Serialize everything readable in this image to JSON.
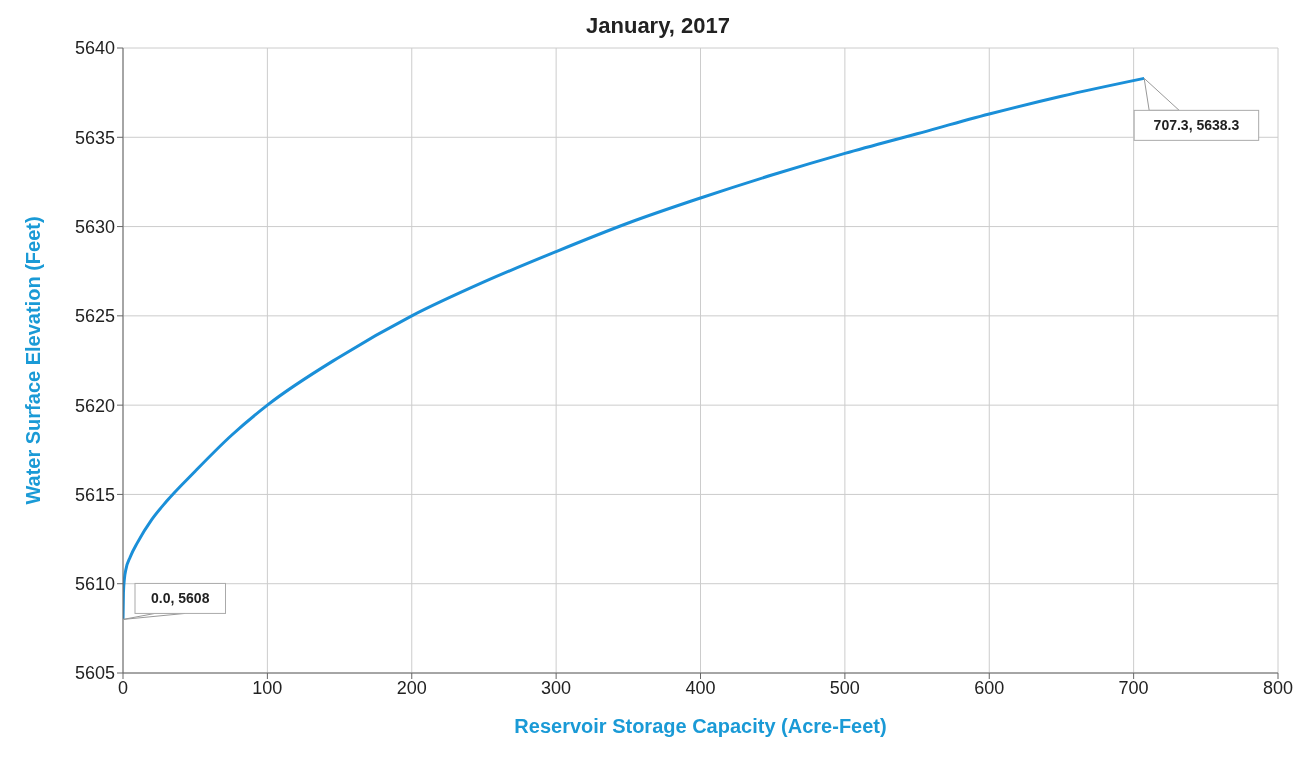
{
  "chart_data": {
    "type": "line",
    "title": "January, 2017",
    "xlabel": "Reservoir Storage Capacity (Acre-Feet)",
    "ylabel": "Water Surface Elevation (Feet)",
    "x": [
      0,
      0.3,
      1,
      2,
      5,
      10,
      20,
      30,
      50,
      75,
      100,
      150,
      200,
      250,
      300,
      350,
      400,
      450,
      500,
      550,
      600,
      650,
      707.3
    ],
    "series": [
      {
        "color": "#1a8fd8",
        "values": [
          5608,
          5609.5,
          5610.3,
          5610.8,
          5611.5,
          5612.3,
          5613.6,
          5614.6,
          5616.3,
          5618.3,
          5620,
          5622.7,
          5625,
          5626.9,
          5628.6,
          5630.2,
          5631.6,
          5632.9,
          5634.1,
          5635.2,
          5636.3,
          5637.3,
          5638.3
        ]
      }
    ],
    "xlim": [
      0,
      800
    ],
    "xticks": [
      0,
      100,
      200,
      300,
      400,
      500,
      600,
      700,
      800
    ],
    "ylim": [
      5605,
      5640
    ],
    "yticks": [
      5605,
      5610,
      5615,
      5620,
      5625,
      5630,
      5635,
      5640
    ],
    "grid": true,
    "legend": false,
    "marker": "none",
    "line_style": "solid",
    "annotations": [
      {
        "text": "0.0, 5608",
        "x": 0,
        "y": 5608
      },
      {
        "text": "707.3, 5638.3",
        "x": 707.3,
        "y": 5638.3
      }
    ]
  }
}
